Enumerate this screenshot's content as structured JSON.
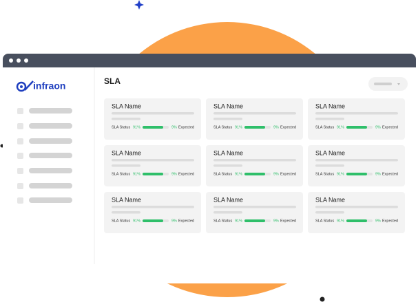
{
  "app": {
    "logo": "infraon",
    "heading": "SLA"
  },
  "cards": [
    {
      "name": "SLA Name",
      "status_label": "SLA Status",
      "status_value": "91%",
      "remaining": "9%",
      "expected": "Expected"
    },
    {
      "name": "SLA Name",
      "status_label": "SLA Status",
      "status_value": "91%",
      "remaining": "9%",
      "expected": "Expected"
    },
    {
      "name": "SLA Name",
      "status_label": "SLA Status",
      "status_value": "91%",
      "remaining": "9%",
      "expected": "Expected"
    },
    {
      "name": "SLA Name",
      "status_label": "SLA Status",
      "status_value": "91%",
      "remaining": "9%",
      "expected": "Expected"
    },
    {
      "name": "SLA Name",
      "status_label": "SLA Status",
      "status_value": "91%",
      "remaining": "9%",
      "expected": "Expected"
    },
    {
      "name": "SLA Name",
      "status_label": "SLA Status",
      "status_value": "91%",
      "remaining": "9%",
      "expected": "Expected"
    },
    {
      "name": "SLA Name",
      "status_label": "SLA Status",
      "status_value": "91%",
      "remaining": "9%",
      "expected": "Expected"
    },
    {
      "name": "SLA Name",
      "status_label": "SLA Status",
      "status_value": "91%",
      "remaining": "9%",
      "expected": "Expected"
    },
    {
      "name": "SLA Name",
      "status_label": "SLA Status",
      "status_value": "91%",
      "remaining": "9%",
      "expected": "Expected"
    }
  ]
}
